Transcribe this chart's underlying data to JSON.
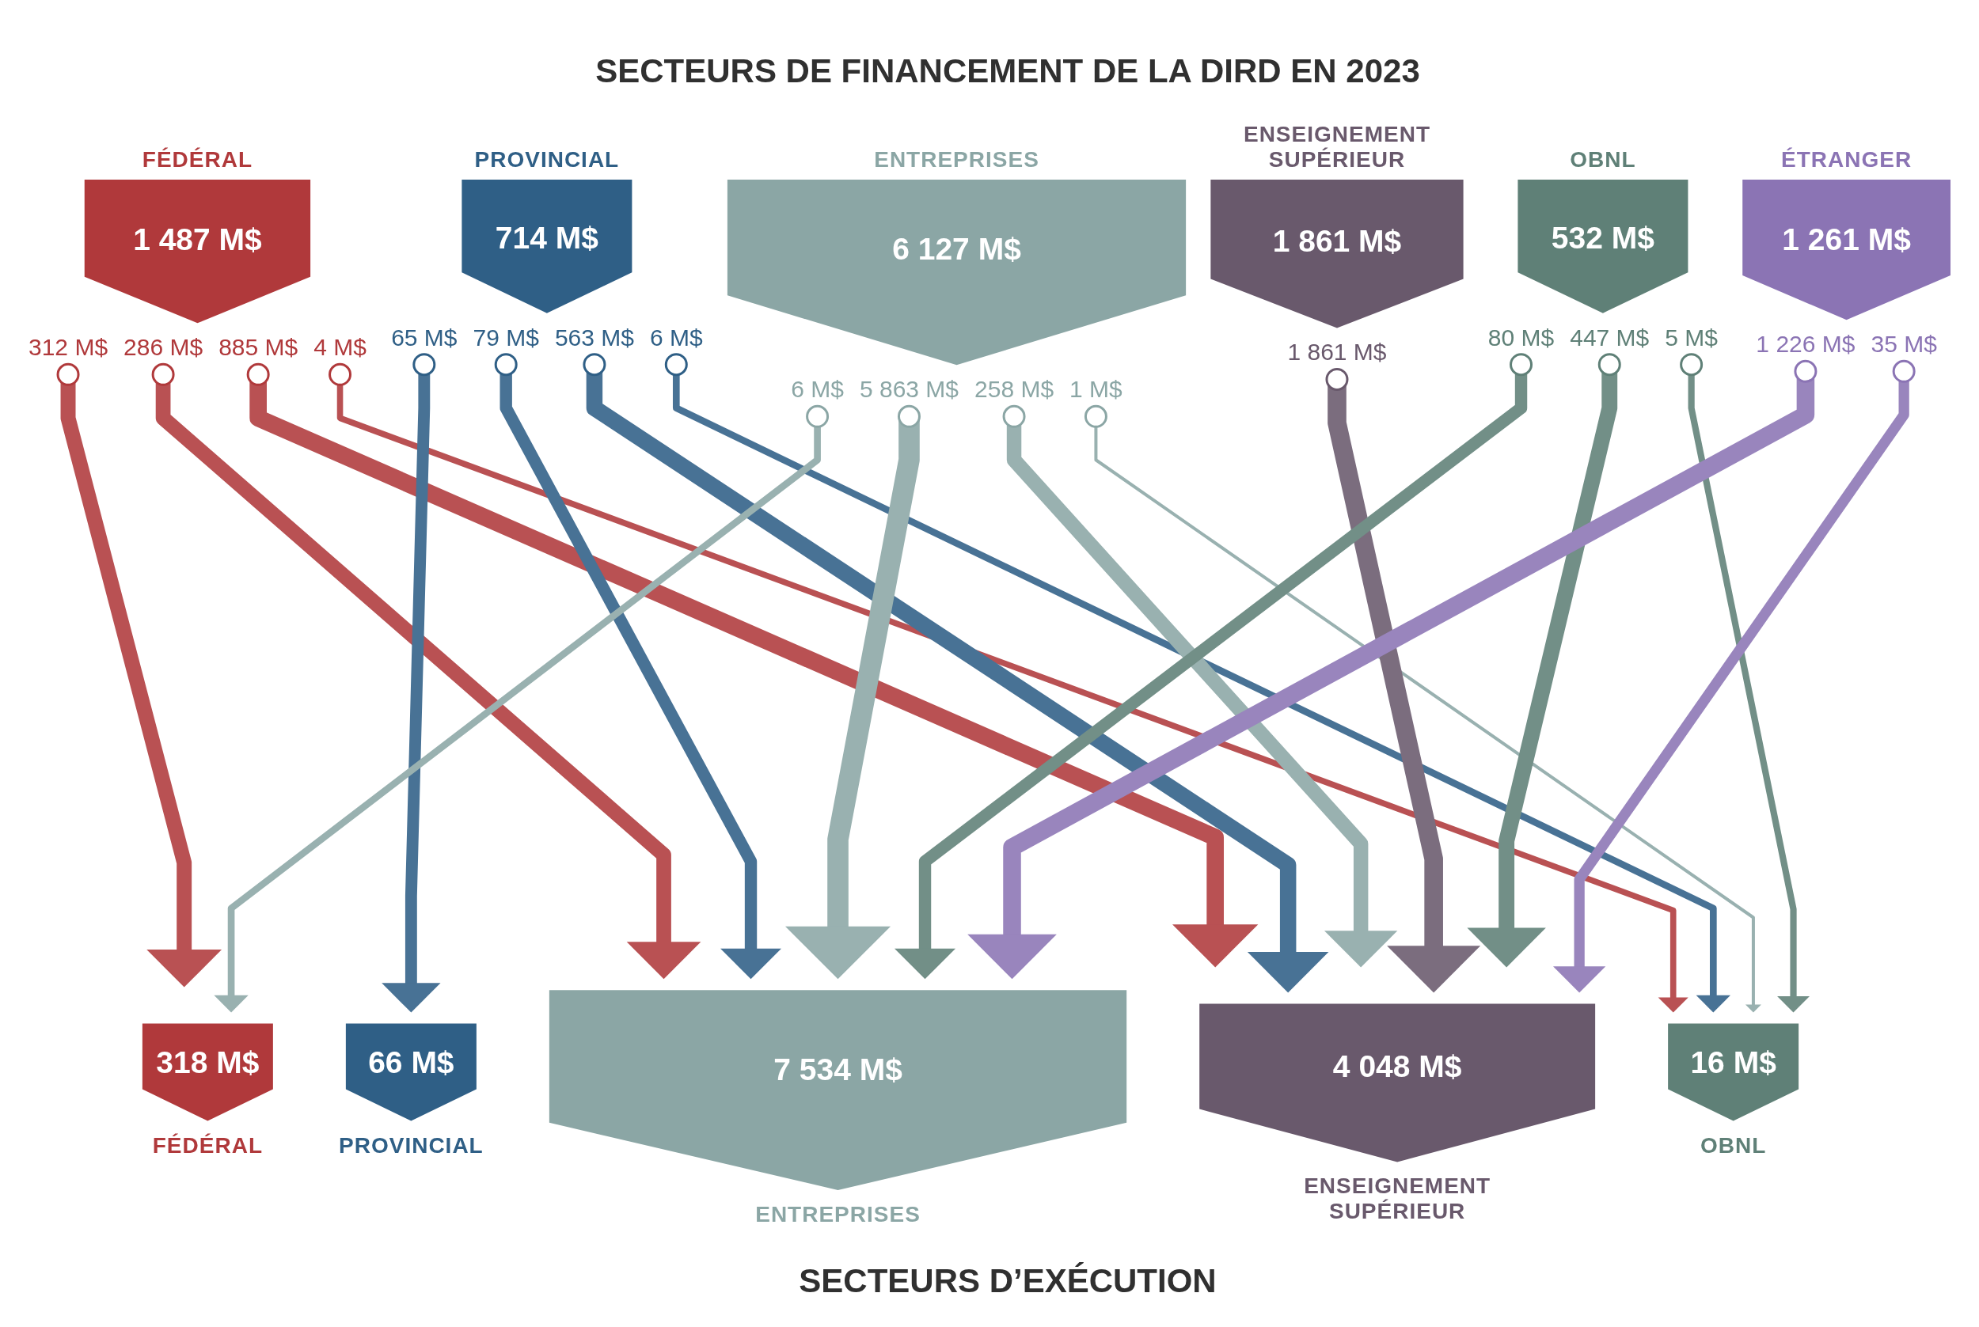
{
  "chart_data": {
    "type": "other",
    "title": "SECTEURS DE FINANCEMENT DE LA DIRD EN 2023",
    "xlabel": "SECTEURS D’EXÉCUTION",
    "categories": [
      "FÉDÉRAL",
      "PROVINCIAL",
      "ENTREPRISES",
      "ENSEIGNEMENT SUPÉRIEUR",
      "OBNL",
      "ÉTRANGER"
    ],
    "values": [
      1487,
      714,
      6127,
      1861,
      532,
      1261
    ],
    "value_labels": [
      "1 487 M$",
      "714 M$",
      "6 127 M$",
      "1 861 M$",
      "532 M$",
      "1 261 M$"
    ],
    "colors": [
      "#b0393b",
      "#2f5f86",
      "#8ba6a5",
      "#69596c",
      "#5f8077",
      "#8b74b4"
    ],
    "series": [
      {
        "name": "FÉDÉRAL",
        "color": "#b0393b",
        "values": [
          312,
          null,
          6,
          null,
          null,
          null
        ],
        "value_labels": [
          "312 M$",
          null,
          "6 M$",
          null,
          null,
          null
        ]
      },
      {
        "name": "PROVINCIAL",
        "color": "#2f5f86",
        "values": [
          null,
          65,
          null,
          null,
          null,
          null
        ],
        "value_labels": [
          null,
          "65 M$",
          null,
          null,
          null,
          null
        ]
      },
      {
        "name": "ENTREPRISES",
        "color": "#8ba6a5",
        "values": [
          286,
          79,
          5863,
          null,
          80,
          1226
        ],
        "value_labels": [
          "286 M$",
          "79 M$",
          "5 863 M$",
          null,
          "80 M$",
          "1 226 M$"
        ]
      },
      {
        "name": "ENSEIGNEMENT SUPÉRIEUR",
        "color": "#69596c",
        "values": [
          885,
          563,
          258,
          1861,
          447,
          35
        ],
        "value_labels": [
          "885 M$",
          "563 M$",
          "258 M$",
          "1 861 M$",
          "447 M$",
          "35 M$"
        ]
      },
      {
        "name": "OBNL",
        "color": "#5f8077",
        "values": [
          4,
          6,
          1,
          null,
          5,
          null
        ],
        "value_labels": [
          "4 M$",
          "6 M$",
          "1 M$",
          null,
          "5 M$",
          null
        ]
      }
    ],
    "totals": [
      "318 M$",
      "66 M$",
      "7 534 M$",
      "4 048 M$",
      "16 M$"
    ]
  }
}
